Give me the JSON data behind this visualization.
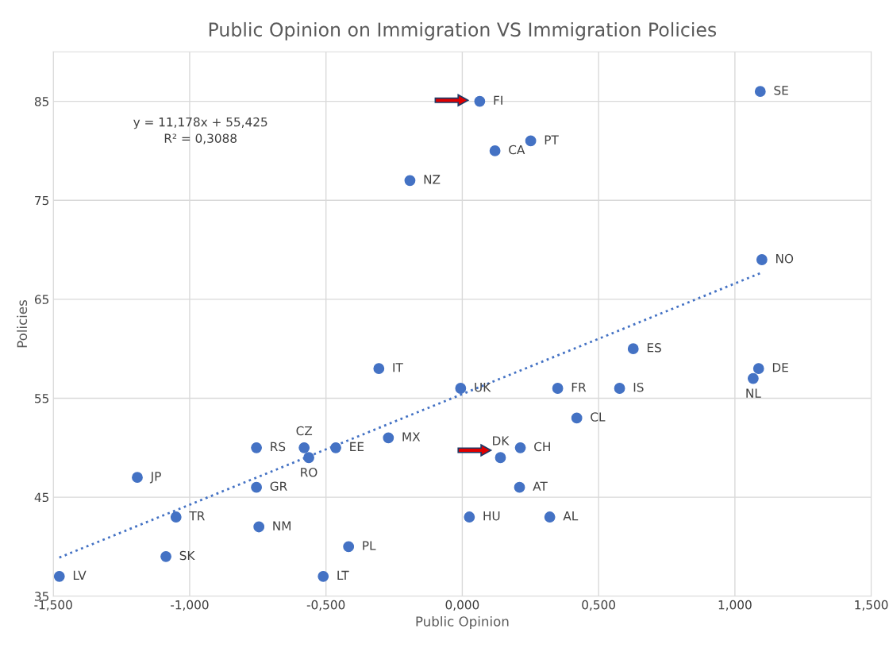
{
  "chart_data": {
    "type": "scatter",
    "title": "Public Opinion on Immigration VS Immigration Policies",
    "xlabel": "Public Opinion",
    "ylabel": "Policies",
    "xlim": [
      -1.5,
      1.5
    ],
    "ylim": [
      35,
      90
    ],
    "xticks": [
      {
        "value": -1.5,
        "label": "-1,500"
      },
      {
        "value": -1.0,
        "label": "-1,000"
      },
      {
        "value": -0.5,
        "label": "-0,500"
      },
      {
        "value": 0,
        "label": "0,000"
      },
      {
        "value": 0.5,
        "label": "0,500"
      },
      {
        "value": 1.0,
        "label": "1,000"
      },
      {
        "value": 1.5,
        "label": "1,500"
      }
    ],
    "yticks": [
      35,
      45,
      55,
      65,
      75,
      85
    ],
    "grid": true,
    "legend": false,
    "series": [
      {
        "color": "#4472c4",
        "marker": "circle",
        "x": [
          1.093,
          0.064,
          0.251,
          0.12,
          -0.192,
          1.099,
          0.627,
          1.087,
          1.067,
          -0.306,
          -0.006,
          0.35,
          0.577,
          0.42,
          -0.271,
          -0.58,
          -0.755,
          -0.464,
          -0.563,
          0.14,
          0.213,
          -1.192,
          -0.755,
          0.21,
          -1.05,
          0.026,
          0.321,
          -0.746,
          -0.417,
          -1.087,
          -1.478,
          -0.51
        ],
        "values": [
          86,
          85,
          81,
          80,
          77,
          69,
          60,
          58,
          57,
          58,
          56,
          56,
          56,
          53,
          51,
          50,
          50,
          50,
          49,
          49,
          50,
          47,
          46,
          46,
          43,
          43,
          43,
          42,
          40,
          39,
          37,
          37
        ],
        "value_labels": [
          "SE",
          "FI",
          "PT",
          "CA",
          "NZ",
          "NO",
          "ES",
          "DE",
          "NL",
          "IT",
          "UK",
          "FR",
          "IS",
          "CL",
          "MX",
          "CZ",
          "RS",
          "EE",
          "RO",
          "DK",
          "CH",
          "JP",
          "GR",
          "AT",
          "TR",
          "HU",
          "AL",
          "NM",
          "PL",
          "SK",
          "LV",
          "LT"
        ]
      },
      {
        "type": "line",
        "color": "#4472c4",
        "marker": "none",
        "line_style": "dotted",
        "x": [
          -1.478,
          1.099
        ],
        "values": [
          38.9,
          67.7
        ]
      }
    ],
    "annotations": [
      "y = 11,178x + 55,425\nR² = 0,3088"
    ]
  }
}
